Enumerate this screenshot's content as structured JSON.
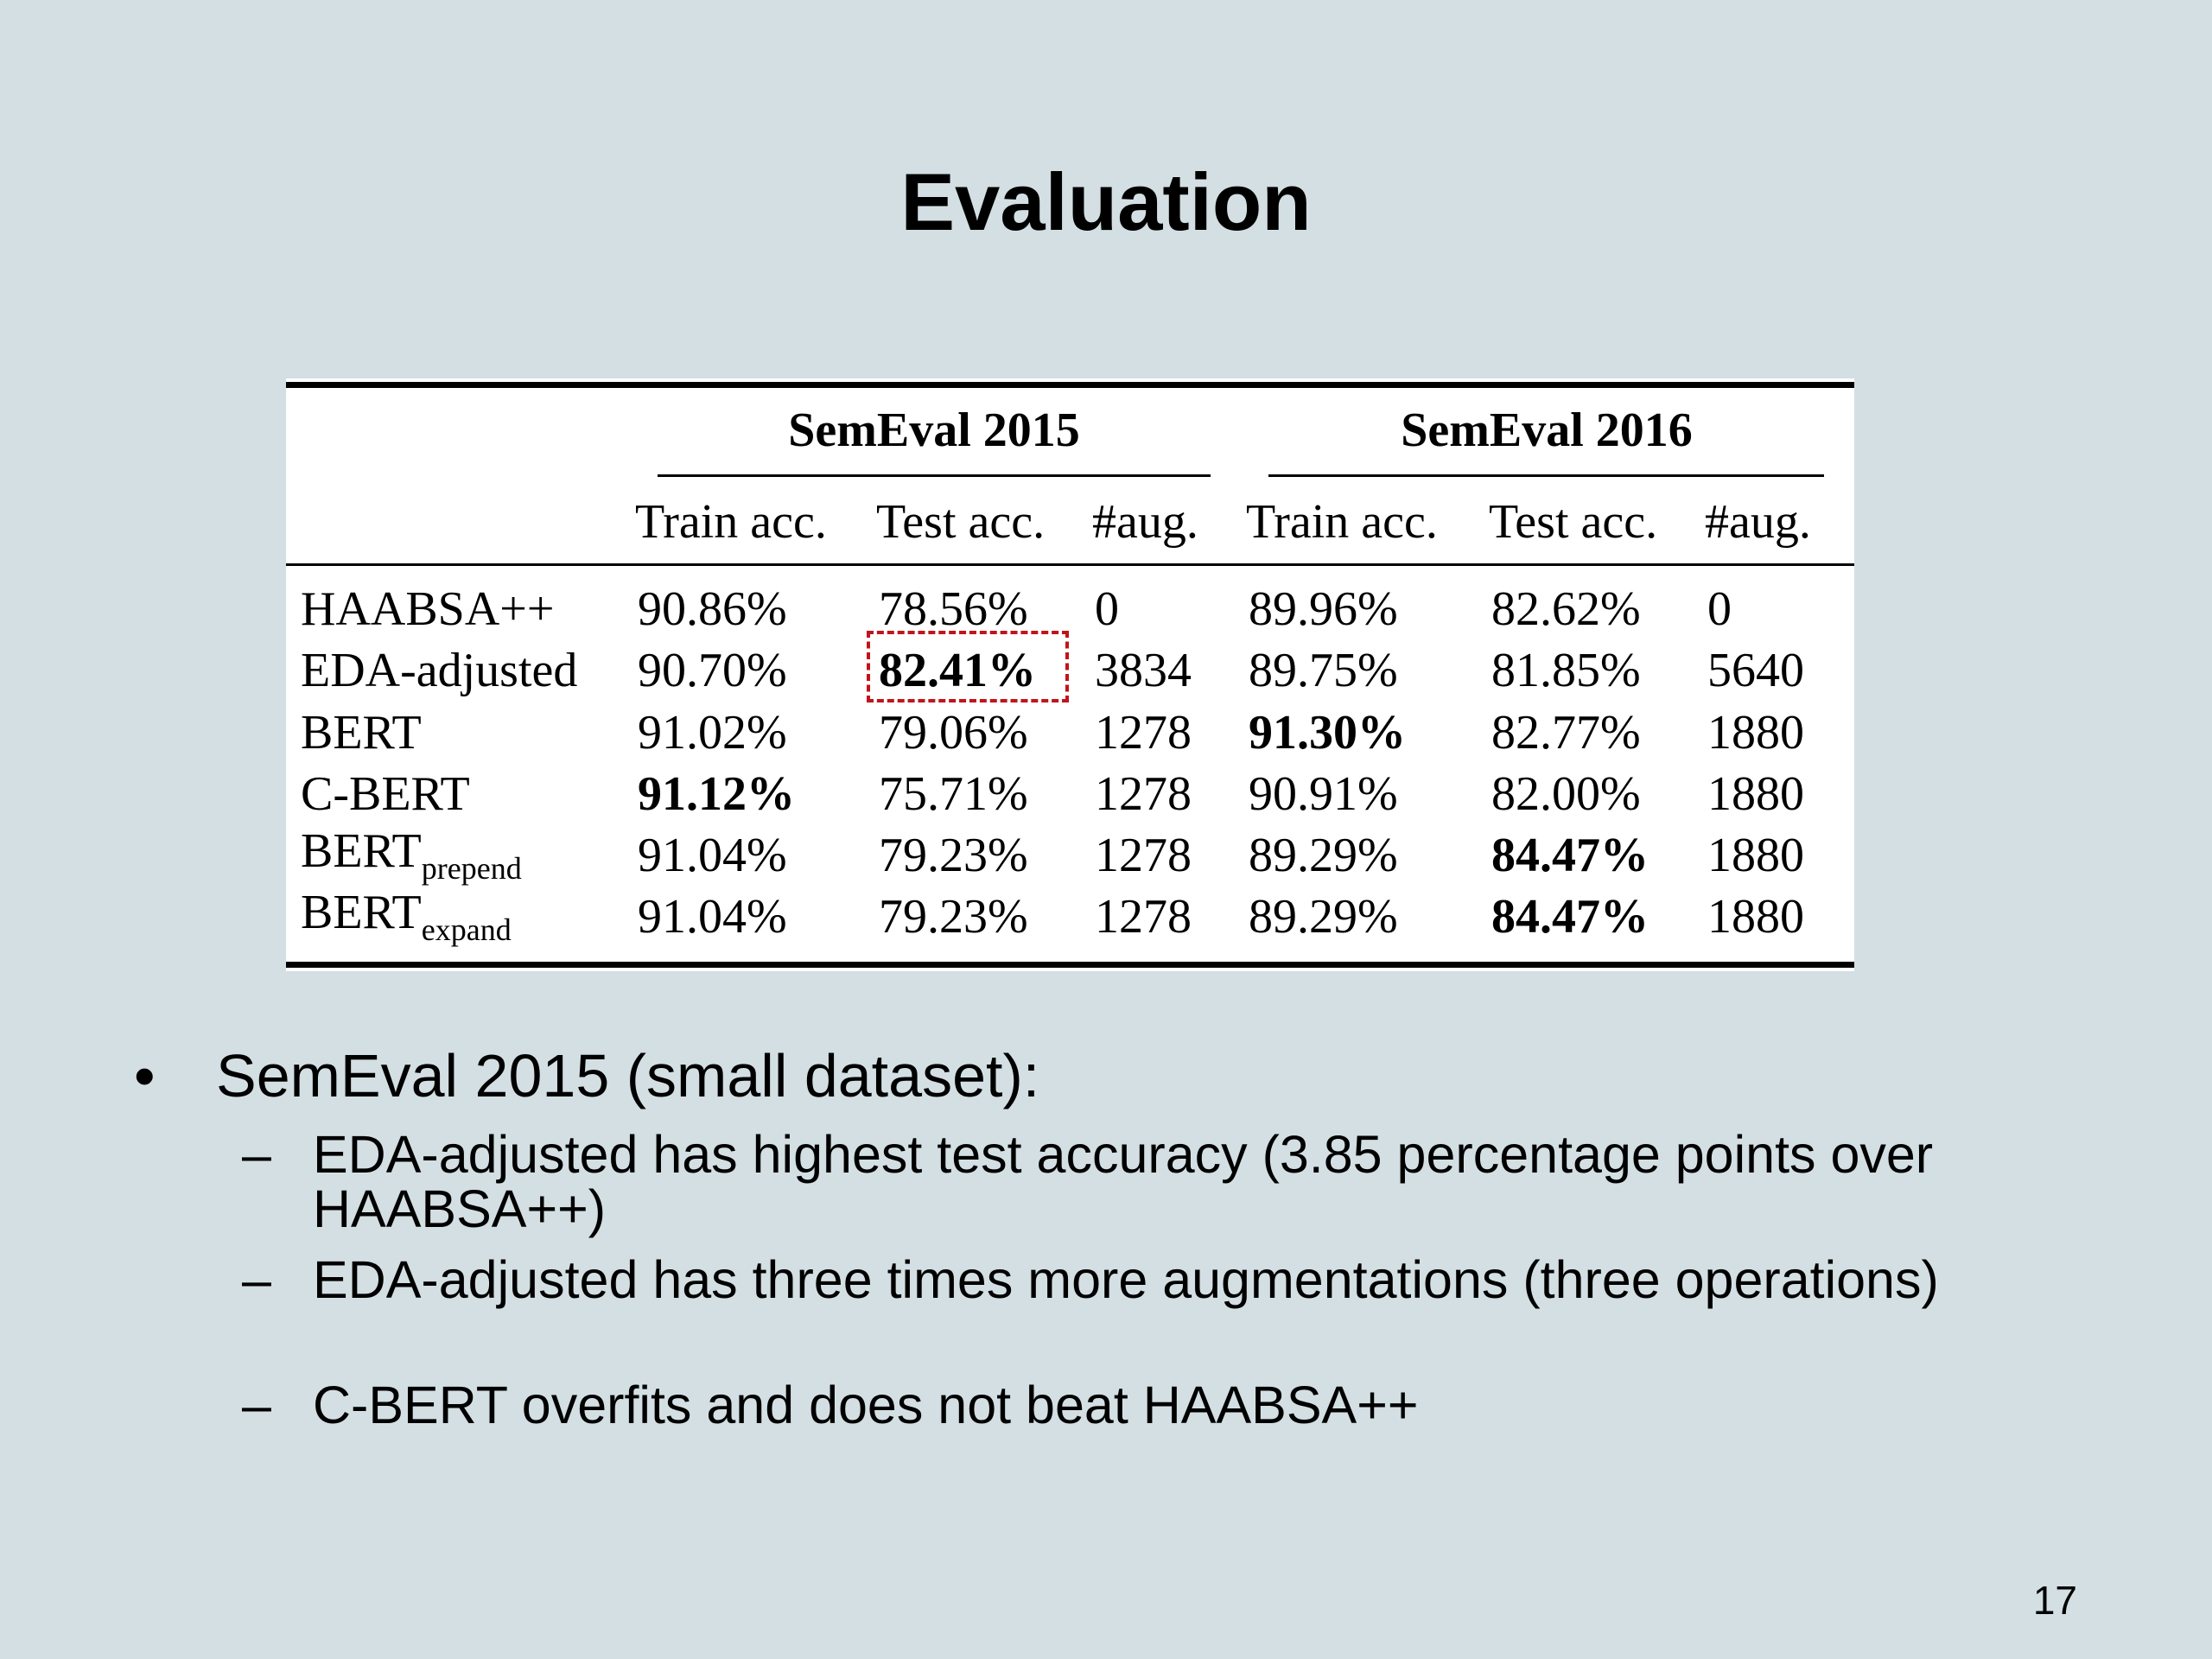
{
  "header": {
    "title": "Evaluation"
  },
  "table": {
    "groups": [
      "SemEval 2015",
      "SemEval 2016"
    ],
    "columns": [
      "Train acc.",
      "Test acc.",
      "#aug.",
      "Train acc.",
      "Test acc.",
      "#aug."
    ],
    "rows": [
      {
        "model": "HAABSA++",
        "cells": [
          "90.86%",
          "78.56%",
          "0",
          "89.96%",
          "82.62%",
          "0"
        ]
      },
      {
        "model": "EDA-adjusted",
        "cells": [
          "90.70%",
          "82.41%",
          "3834",
          "89.75%",
          "81.85%",
          "5640"
        ]
      },
      {
        "model": "BERT",
        "cells": [
          "91.02%",
          "79.06%",
          "1278",
          "91.30%",
          "82.77%",
          "1880"
        ]
      },
      {
        "model": "C-BERT",
        "cells": [
          "91.12%",
          "75.71%",
          "1278",
          "90.91%",
          "82.00%",
          "1880"
        ]
      },
      {
        "model": "BERT",
        "subscript": "prepend",
        "cells": [
          "91.04%",
          "79.23%",
          "1278",
          "89.29%",
          "84.47%",
          "1880"
        ]
      },
      {
        "model": "BERT",
        "subscript": "expand",
        "cells": [
          "91.04%",
          "79.23%",
          "1278",
          "89.29%",
          "84.47%",
          "1880"
        ]
      }
    ]
  },
  "bullets": [
    {
      "text": "SemEval 2015 (small dataset):",
      "items": [
        "EDA-adjusted has highest test accuracy (3.85 percentage points over HAABSA++)",
        "EDA-adjusted has three times more augmentations (three operations)",
        "C-BERT overfits and does not beat HAABSA++"
      ]
    }
  ],
  "footer": {
    "page_number": "17"
  }
}
